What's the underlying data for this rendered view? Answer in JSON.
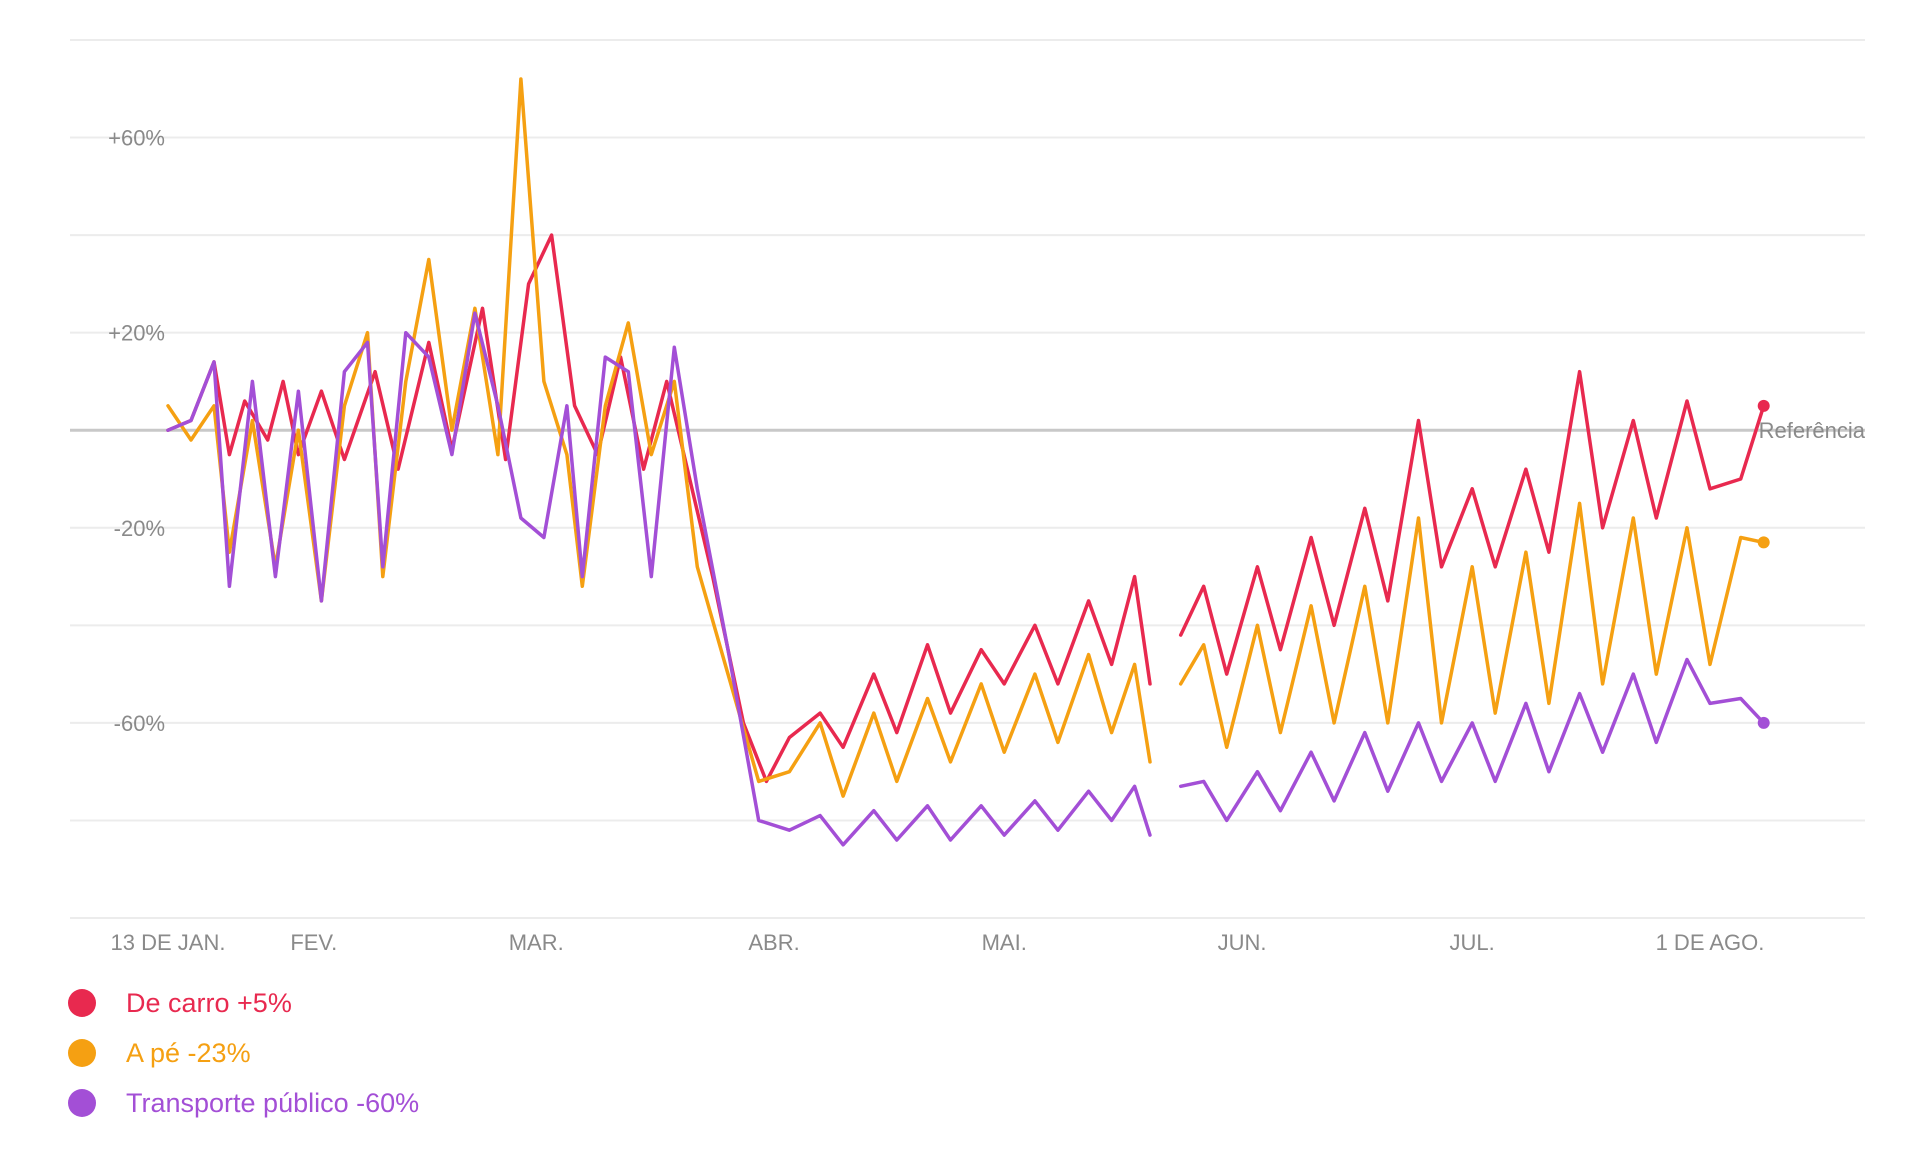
{
  "chart_data": {
    "type": "line",
    "y_ticks": [
      60,
      20,
      -20,
      -60
    ],
    "y_tick_labels": [
      "+60%",
      "+20%",
      "-20%",
      "-60%"
    ],
    "ylim": [
      -100,
      80
    ],
    "x_tick_labels": [
      "13 DE JAN.",
      "FEV.",
      "MAR.",
      "ABR.",
      "MAI.",
      "JUN.",
      "JUL.",
      "1 DE AGO."
    ],
    "x_tick_dates": [
      "2020-01-13",
      "2020-02-01",
      "2020-03-01",
      "2020-04-01",
      "2020-05-01",
      "2020-06-01",
      "2020-07-01",
      "2020-08-01"
    ],
    "baseline": {
      "value": 0,
      "label": "Referência"
    },
    "grid": true,
    "legend_position": "bottom-left",
    "series": [
      {
        "name": "De carro +5%",
        "color": "#e8294f",
        "points": [
          [
            "2020-01-13",
            0
          ],
          [
            "2020-01-16",
            2
          ],
          [
            "2020-01-19",
            14
          ],
          [
            "2020-01-21",
            -5
          ],
          [
            "2020-01-23",
            6
          ],
          [
            "2020-01-26",
            -2
          ],
          [
            "2020-01-28",
            10
          ],
          [
            "2020-01-30",
            -5
          ],
          [
            "2020-02-02",
            8
          ],
          [
            "2020-02-05",
            -6
          ],
          [
            "2020-02-09",
            12
          ],
          [
            "2020-02-12",
            -8
          ],
          [
            "2020-02-16",
            18
          ],
          [
            "2020-02-19",
            -4
          ],
          [
            "2020-02-23",
            25
          ],
          [
            "2020-02-26",
            -6
          ],
          [
            "2020-02-29",
            30
          ],
          [
            "2020-03-03",
            40
          ],
          [
            "2020-03-06",
            5
          ],
          [
            "2020-03-09",
            -5
          ],
          [
            "2020-03-12",
            15
          ],
          [
            "2020-03-15",
            -8
          ],
          [
            "2020-03-18",
            10
          ],
          [
            "2020-03-21",
            -10
          ],
          [
            "2020-03-24",
            -30
          ],
          [
            "2020-03-28",
            -60
          ],
          [
            "2020-03-31",
            -72
          ],
          [
            "2020-04-03",
            -63
          ],
          [
            "2020-04-07",
            -58
          ],
          [
            "2020-04-10",
            -65
          ],
          [
            "2020-04-14",
            -50
          ],
          [
            "2020-04-17",
            -62
          ],
          [
            "2020-04-21",
            -44
          ],
          [
            "2020-04-24",
            -58
          ],
          [
            "2020-04-28",
            -45
          ],
          [
            "2020-05-01",
            -52
          ],
          [
            "2020-05-05",
            -40
          ],
          [
            "2020-05-08",
            -52
          ],
          [
            "2020-05-12",
            -35
          ],
          [
            "2020-05-15",
            -48
          ],
          [
            "2020-05-18",
            -30
          ],
          [
            "2020-05-20",
            -52
          ],
          [
            "2020-05-22",
            null
          ],
          [
            "2020-05-24",
            -42
          ],
          [
            "2020-05-27",
            -32
          ],
          [
            "2020-05-30",
            -50
          ],
          [
            "2020-06-03",
            -28
          ],
          [
            "2020-06-06",
            -45
          ],
          [
            "2020-06-10",
            -22
          ],
          [
            "2020-06-13",
            -40
          ],
          [
            "2020-06-17",
            -16
          ],
          [
            "2020-06-20",
            -35
          ],
          [
            "2020-06-24",
            2
          ],
          [
            "2020-06-27",
            -28
          ],
          [
            "2020-07-01",
            -12
          ],
          [
            "2020-07-04",
            -28
          ],
          [
            "2020-07-08",
            -8
          ],
          [
            "2020-07-11",
            -25
          ],
          [
            "2020-07-15",
            12
          ],
          [
            "2020-07-18",
            -20
          ],
          [
            "2020-07-22",
            2
          ],
          [
            "2020-07-25",
            -18
          ],
          [
            "2020-07-29",
            6
          ],
          [
            "2020-08-01",
            -12
          ],
          [
            "2020-08-05",
            -10
          ],
          [
            "2020-08-08",
            5
          ]
        ]
      },
      {
        "name": "A pé -23%",
        "color": "#f5a012",
        "points": [
          [
            "2020-01-13",
            5
          ],
          [
            "2020-01-16",
            -2
          ],
          [
            "2020-01-19",
            5
          ],
          [
            "2020-01-21",
            -25
          ],
          [
            "2020-01-24",
            2
          ],
          [
            "2020-01-27",
            -28
          ],
          [
            "2020-01-30",
            0
          ],
          [
            "2020-02-02",
            -35
          ],
          [
            "2020-02-05",
            5
          ],
          [
            "2020-02-08",
            20
          ],
          [
            "2020-02-10",
            -30
          ],
          [
            "2020-02-13",
            10
          ],
          [
            "2020-02-16",
            35
          ],
          [
            "2020-02-19",
            0
          ],
          [
            "2020-02-22",
            25
          ],
          [
            "2020-02-25",
            -5
          ],
          [
            "2020-02-28",
            72
          ],
          [
            "2020-03-02",
            10
          ],
          [
            "2020-03-05",
            -5
          ],
          [
            "2020-03-07",
            -32
          ],
          [
            "2020-03-10",
            5
          ],
          [
            "2020-03-13",
            22
          ],
          [
            "2020-03-16",
            -5
          ],
          [
            "2020-03-19",
            10
          ],
          [
            "2020-03-22",
            -28
          ],
          [
            "2020-03-26",
            -50
          ],
          [
            "2020-03-30",
            -72
          ],
          [
            "2020-04-03",
            -70
          ],
          [
            "2020-04-07",
            -60
          ],
          [
            "2020-04-10",
            -75
          ],
          [
            "2020-04-14",
            -58
          ],
          [
            "2020-04-17",
            -72
          ],
          [
            "2020-04-21",
            -55
          ],
          [
            "2020-04-24",
            -68
          ],
          [
            "2020-04-28",
            -52
          ],
          [
            "2020-05-01",
            -66
          ],
          [
            "2020-05-05",
            -50
          ],
          [
            "2020-05-08",
            -64
          ],
          [
            "2020-05-12",
            -46
          ],
          [
            "2020-05-15",
            -62
          ],
          [
            "2020-05-18",
            -48
          ],
          [
            "2020-05-20",
            -68
          ],
          [
            "2020-05-22",
            null
          ],
          [
            "2020-05-24",
            -52
          ],
          [
            "2020-05-27",
            -44
          ],
          [
            "2020-05-30",
            -65
          ],
          [
            "2020-06-03",
            -40
          ],
          [
            "2020-06-06",
            -62
          ],
          [
            "2020-06-10",
            -36
          ],
          [
            "2020-06-13",
            -60
          ],
          [
            "2020-06-17",
            -32
          ],
          [
            "2020-06-20",
            -60
          ],
          [
            "2020-06-24",
            -18
          ],
          [
            "2020-06-27",
            -60
          ],
          [
            "2020-07-01",
            -28
          ],
          [
            "2020-07-04",
            -58
          ],
          [
            "2020-07-08",
            -25
          ],
          [
            "2020-07-11",
            -56
          ],
          [
            "2020-07-15",
            -15
          ],
          [
            "2020-07-18",
            -52
          ],
          [
            "2020-07-22",
            -18
          ],
          [
            "2020-07-25",
            -50
          ],
          [
            "2020-07-29",
            -20
          ],
          [
            "2020-08-01",
            -48
          ],
          [
            "2020-08-05",
            -22
          ],
          [
            "2020-08-08",
            -23
          ]
        ]
      },
      {
        "name": "Transporte público -60%",
        "color": "#a34fd6",
        "points": [
          [
            "2020-01-13",
            0
          ],
          [
            "2020-01-16",
            2
          ],
          [
            "2020-01-19",
            14
          ],
          [
            "2020-01-21",
            -32
          ],
          [
            "2020-01-24",
            10
          ],
          [
            "2020-01-27",
            -30
          ],
          [
            "2020-01-30",
            8
          ],
          [
            "2020-02-02",
            -35
          ],
          [
            "2020-02-05",
            12
          ],
          [
            "2020-02-08",
            18
          ],
          [
            "2020-02-10",
            -28
          ],
          [
            "2020-02-13",
            20
          ],
          [
            "2020-02-16",
            15
          ],
          [
            "2020-02-19",
            -5
          ],
          [
            "2020-02-22",
            24
          ],
          [
            "2020-02-25",
            5
          ],
          [
            "2020-02-28",
            -18
          ],
          [
            "2020-03-02",
            -22
          ],
          [
            "2020-03-05",
            5
          ],
          [
            "2020-03-07",
            -30
          ],
          [
            "2020-03-10",
            15
          ],
          [
            "2020-03-13",
            12
          ],
          [
            "2020-03-16",
            -30
          ],
          [
            "2020-03-19",
            17
          ],
          [
            "2020-03-22",
            -12
          ],
          [
            "2020-03-26",
            -45
          ],
          [
            "2020-03-30",
            -80
          ],
          [
            "2020-04-03",
            -82
          ],
          [
            "2020-04-07",
            -79
          ],
          [
            "2020-04-10",
            -85
          ],
          [
            "2020-04-14",
            -78
          ],
          [
            "2020-04-17",
            -84
          ],
          [
            "2020-04-21",
            -77
          ],
          [
            "2020-04-24",
            -84
          ],
          [
            "2020-04-28",
            -77
          ],
          [
            "2020-05-01",
            -83
          ],
          [
            "2020-05-05",
            -76
          ],
          [
            "2020-05-08",
            -82
          ],
          [
            "2020-05-12",
            -74
          ],
          [
            "2020-05-15",
            -80
          ],
          [
            "2020-05-18",
            -73
          ],
          [
            "2020-05-20",
            -83
          ],
          [
            "2020-05-22",
            null
          ],
          [
            "2020-05-24",
            -73
          ],
          [
            "2020-05-27",
            -72
          ],
          [
            "2020-05-30",
            -80
          ],
          [
            "2020-06-03",
            -70
          ],
          [
            "2020-06-06",
            -78
          ],
          [
            "2020-06-10",
            -66
          ],
          [
            "2020-06-13",
            -76
          ],
          [
            "2020-06-17",
            -62
          ],
          [
            "2020-06-20",
            -74
          ],
          [
            "2020-06-24",
            -60
          ],
          [
            "2020-06-27",
            -72
          ],
          [
            "2020-07-01",
            -60
          ],
          [
            "2020-07-04",
            -72
          ],
          [
            "2020-07-08",
            -56
          ],
          [
            "2020-07-11",
            -70
          ],
          [
            "2020-07-15",
            -54
          ],
          [
            "2020-07-18",
            -66
          ],
          [
            "2020-07-22",
            -50
          ],
          [
            "2020-07-25",
            -64
          ],
          [
            "2020-07-29",
            -47
          ],
          [
            "2020-08-01",
            -56
          ],
          [
            "2020-08-05",
            -55
          ],
          [
            "2020-08-08",
            -60
          ]
        ]
      }
    ]
  },
  "legend": [
    {
      "label": "De carro +5%",
      "color": "#e8294f"
    },
    {
      "label": "A pé -23%",
      "color": "#f5a012"
    },
    {
      "label": "Transporte público -60%",
      "color": "#a34fd6"
    }
  ]
}
